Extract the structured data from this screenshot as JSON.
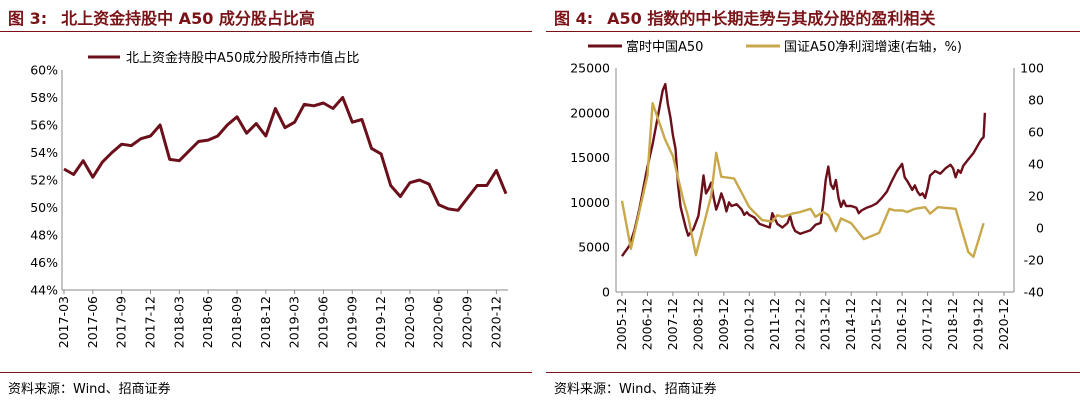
{
  "left": {
    "title_prefix": "图 3:",
    "title_text": "北上资金持股中 A50 成分股占比高",
    "source": "资料来源：Wind、招商证券",
    "chart_data": {
      "type": "line",
      "title": "",
      "xlabel": "",
      "ylabel": "",
      "ylim": [
        0.44,
        0.6
      ],
      "y_ticks": [
        "44%",
        "46%",
        "48%",
        "50%",
        "52%",
        "54%",
        "56%",
        "58%",
        "60%"
      ],
      "x_ticks": [
        "2017-03",
        "2017-06",
        "2017-09",
        "2017-12",
        "2018-03",
        "2018-06",
        "2018-09",
        "2018-12",
        "2019-03",
        "2019-06",
        "2019-09",
        "2019-12",
        "2020-03",
        "2020-06",
        "2020-09",
        "2020-12"
      ],
      "grid": false,
      "legend": "top",
      "series": [
        {
          "name": "北上资金持股中A50成分股所持市值占比",
          "color": "#6b0f1a",
          "unit": "month",
          "values": [
            0.528,
            0.524,
            0.534,
            0.522,
            0.533,
            0.54,
            0.546,
            0.545,
            0.55,
            0.552,
            0.56,
            0.535,
            0.534,
            0.541,
            0.548,
            0.549,
            0.552,
            0.56,
            0.566,
            0.554,
            0.561,
            0.552,
            0.572,
            0.558,
            0.562,
            0.575,
            0.574,
            0.576,
            0.572,
            0.58,
            0.562,
            0.564,
            0.543,
            0.539,
            0.516,
            0.508,
            0.518,
            0.52,
            0.517,
            0.502,
            0.499,
            0.498,
            0.507,
            0.516,
            0.516,
            0.527,
            0.51
          ]
        }
      ]
    }
  },
  "right": {
    "title_prefix": "图 4:",
    "title_text": "A50 指数的中长期走势与其成分股的盈利相关",
    "source": "资料来源：Wind、招商证券",
    "chart_data": {
      "type": "line",
      "title": "",
      "xlabel": "",
      "ylabel": "",
      "ylim": [
        0,
        25000
      ],
      "y_ticks": [
        "0",
        "5000",
        "10000",
        "15000",
        "20000",
        "25000"
      ],
      "y2lim": [
        -40,
        100
      ],
      "y2_ticks": [
        "-40",
        "-20",
        "0",
        "20",
        "40",
        "60",
        "80",
        "100"
      ],
      "x_ticks": [
        "2005-12",
        "2006-12",
        "2007-12",
        "2008-12",
        "2009-12",
        "2010-12",
        "2011-12",
        "2012-12",
        "2013-12",
        "2014-12",
        "2015-12",
        "2016-12",
        "2017-12",
        "2018-12",
        "2019-12",
        "2020-12"
      ],
      "grid": false,
      "legend": "top",
      "series": [
        {
          "name": "富时中国A50",
          "color": "#6b0f1a",
          "axis": "left",
          "points": [
            [
              0,
              4000
            ],
            [
              0.1,
              4400
            ],
            [
              0.3,
              5200
            ],
            [
              0.5,
              7000
            ],
            [
              0.7,
              9500
            ],
            [
              0.9,
              12500
            ],
            [
              1.0,
              14000
            ],
            [
              1.2,
              16500
            ],
            [
              1.4,
              19500
            ],
            [
              1.6,
              22500
            ],
            [
              1.7,
              23200
            ],
            [
              1.8,
              21000
            ],
            [
              1.9,
              19500
            ],
            [
              2.0,
              17500
            ],
            [
              2.1,
              16000
            ],
            [
              2.2,
              12000
            ],
            [
              2.3,
              9500
            ],
            [
              2.5,
              7200
            ],
            [
              2.6,
              6300
            ],
            [
              2.8,
              7000
            ],
            [
              3.0,
              8500
            ],
            [
              3.1,
              10500
            ],
            [
              3.2,
              13000
            ],
            [
              3.3,
              11000
            ],
            [
              3.4,
              11500
            ],
            [
              3.5,
              12200
            ],
            [
              3.6,
              10500
            ],
            [
              3.7,
              9200
            ],
            [
              3.8,
              10000
            ],
            [
              3.9,
              11000
            ],
            [
              4.0,
              10200
            ],
            [
              4.1,
              9000
            ],
            [
              4.2,
              10000
            ],
            [
              4.3,
              9600
            ],
            [
              4.5,
              9800
            ],
            [
              4.7,
              9200
            ],
            [
              4.8,
              8600
            ],
            [
              4.9,
              8900
            ],
            [
              5.0,
              8600
            ],
            [
              5.2,
              8300
            ],
            [
              5.4,
              7600
            ],
            [
              5.6,
              7400
            ],
            [
              5.8,
              7200
            ],
            [
              5.9,
              8800
            ],
            [
              6.0,
              8200
            ],
            [
              6.1,
              7600
            ],
            [
              6.3,
              7200
            ],
            [
              6.5,
              7700
            ],
            [
              6.6,
              8500
            ],
            [
              6.7,
              7400
            ],
            [
              6.8,
              6800
            ],
            [
              7.0,
              6500
            ],
            [
              7.2,
              6700
            ],
            [
              7.4,
              6900
            ],
            [
              7.6,
              7500
            ],
            [
              7.8,
              7700
            ],
            [
              7.9,
              9800
            ],
            [
              8.0,
              12500
            ],
            [
              8.1,
              14000
            ],
            [
              8.2,
              12000
            ],
            [
              8.3,
              11500
            ],
            [
              8.4,
              12500
            ],
            [
              8.5,
              10500
            ],
            [
              8.6,
              9500
            ],
            [
              8.7,
              10200
            ],
            [
              8.8,
              9600
            ],
            [
              9.0,
              9600
            ],
            [
              9.2,
              9400
            ],
            [
              9.3,
              8800
            ],
            [
              9.4,
              9100
            ],
            [
              9.6,
              9400
            ],
            [
              9.8,
              9600
            ],
            [
              10.0,
              9900
            ],
            [
              10.2,
              10500
            ],
            [
              10.4,
              11200
            ],
            [
              10.6,
              12400
            ],
            [
              10.8,
              13500
            ],
            [
              11.0,
              14300
            ],
            [
              11.1,
              12800
            ],
            [
              11.2,
              12400
            ],
            [
              11.4,
              11400
            ],
            [
              11.5,
              11900
            ],
            [
              11.6,
              11200
            ],
            [
              11.7,
              10800
            ],
            [
              11.8,
              11000
            ],
            [
              11.9,
              10500
            ],
            [
              12.0,
              11600
            ],
            [
              12.1,
              13000
            ],
            [
              12.3,
              13500
            ],
            [
              12.5,
              13200
            ],
            [
              12.7,
              13800
            ],
            [
              12.9,
              14200
            ],
            [
              13.0,
              13800
            ],
            [
              13.1,
              12800
            ],
            [
              13.2,
              13600
            ],
            [
              13.3,
              13300
            ],
            [
              13.4,
              14100
            ],
            [
              13.6,
              14800
            ],
            [
              13.8,
              15500
            ],
            [
              14.0,
              16500
            ],
            [
              14.1,
              17000
            ],
            [
              14.2,
              17300
            ],
            [
              14.25,
              20000
            ]
          ]
        },
        {
          "name": "国证A50净利润增速(右轴，%)",
          "color": "#c9a84b",
          "axis": "right",
          "points": [
            [
              0,
              17
            ],
            [
              0.35,
              -13
            ],
            [
              1.0,
              33
            ],
            [
              1.2,
              78
            ],
            [
              1.7,
              55
            ],
            [
              2.0,
              45
            ],
            [
              2.4,
              18
            ],
            [
              2.6,
              7
            ],
            [
              2.9,
              -17
            ],
            [
              3.5,
              20
            ],
            [
              3.7,
              47
            ],
            [
              3.9,
              32
            ],
            [
              4.4,
              31
            ],
            [
              5.0,
              13
            ],
            [
              5.5,
              5
            ],
            [
              5.9,
              4
            ],
            [
              6.1,
              8
            ],
            [
              6.3,
              7
            ],
            [
              6.7,
              9
            ],
            [
              7.0,
              10
            ],
            [
              7.4,
              12
            ],
            [
              7.6,
              7
            ],
            [
              7.9,
              10
            ],
            [
              8.1,
              8
            ],
            [
              8.4,
              -2
            ],
            [
              8.6,
              6
            ],
            [
              9.0,
              3
            ],
            [
              9.5,
              -7
            ],
            [
              10.1,
              -3
            ],
            [
              10.5,
              12
            ],
            [
              10.7,
              11
            ],
            [
              11.0,
              11
            ],
            [
              11.2,
              10
            ],
            [
              11.5,
              12
            ],
            [
              11.9,
              13
            ],
            [
              12.1,
              9
            ],
            [
              12.4,
              13
            ],
            [
              13.1,
              12
            ],
            [
              13.6,
              -15
            ],
            [
              13.8,
              -18
            ],
            [
              14.2,
              3
            ]
          ]
        }
      ]
    }
  }
}
